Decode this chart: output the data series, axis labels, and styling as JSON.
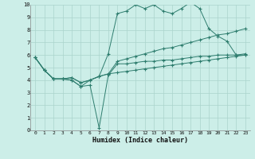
{
  "xlabel": "Humidex (Indice chaleur)",
  "bg_color": "#cceee8",
  "line_color": "#2e7d6e",
  "grid_color": "#aad4cc",
  "xlim": [
    -0.5,
    23.5
  ],
  "ylim": [
    0,
    10
  ],
  "xticks": [
    0,
    1,
    2,
    3,
    4,
    5,
    6,
    7,
    8,
    9,
    10,
    11,
    12,
    13,
    14,
    15,
    16,
    17,
    18,
    19,
    20,
    21,
    22,
    23
  ],
  "yticks": [
    0,
    1,
    2,
    3,
    4,
    5,
    6,
    7,
    8,
    9,
    10
  ],
  "series": {
    "line1": [
      5.8,
      4.8,
      4.1,
      4.1,
      4.0,
      3.5,
      4.0,
      4.3,
      6.1,
      9.3,
      9.5,
      10.0,
      9.7,
      10.0,
      9.5,
      9.3,
      9.7,
      10.2,
      9.7,
      8.1,
      7.5,
      7.1,
      6.0,
      6.0
    ],
    "line2": [
      5.8,
      4.8,
      4.1,
      4.1,
      4.0,
      3.5,
      3.6,
      0.2,
      4.4,
      5.3,
      5.3,
      5.4,
      5.5,
      5.5,
      5.6,
      5.6,
      5.7,
      5.8,
      5.9,
      5.9,
      6.0,
      6.0,
      6.0,
      6.1
    ],
    "line3": [
      5.8,
      4.8,
      4.1,
      4.1,
      4.2,
      3.8,
      4.0,
      4.3,
      4.5,
      4.6,
      4.7,
      4.8,
      4.9,
      5.0,
      5.1,
      5.2,
      5.3,
      5.4,
      5.5,
      5.6,
      5.7,
      5.8,
      5.9,
      6.0
    ],
    "line4": [
      5.8,
      4.8,
      4.1,
      4.1,
      4.2,
      3.8,
      4.0,
      4.3,
      4.5,
      5.5,
      5.7,
      5.9,
      6.1,
      6.3,
      6.5,
      6.6,
      6.8,
      7.0,
      7.2,
      7.4,
      7.6,
      7.7,
      7.9,
      8.1
    ]
  }
}
